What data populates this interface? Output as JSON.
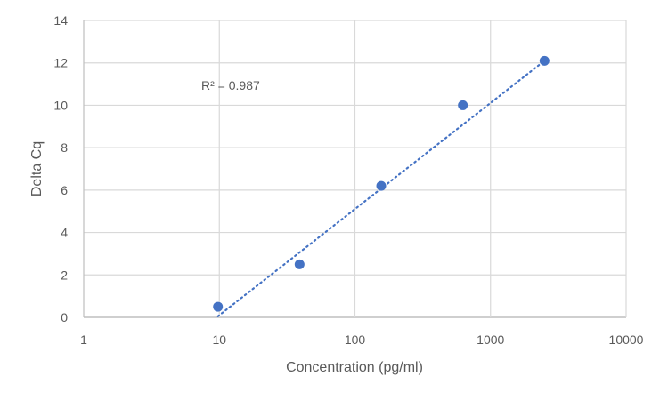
{
  "chart_data": {
    "type": "scatter",
    "title": "",
    "xlabel": "Concentration (pg/ml)",
    "ylabel": "Delta Cq",
    "xscale": "log",
    "xlim": [
      1,
      10000
    ],
    "ylim": [
      0,
      14
    ],
    "x_ticks": [
      "1",
      "10",
      "100",
      "1000",
      "10000"
    ],
    "y_ticks": [
      "0",
      "2",
      "4",
      "6",
      "8",
      "10",
      "12",
      "14"
    ],
    "grid": true,
    "legend": null,
    "series": [
      {
        "name": "Delta Cq",
        "color": "#4472C4",
        "x": [
          9.77,
          39.06,
          156.25,
          625,
          2500
        ],
        "y": [
          0.5,
          2.5,
          6.2,
          10.0,
          12.1
        ]
      }
    ],
    "trendline": {
      "type": "logarithmic",
      "style": "dotted",
      "color": "#4472C4",
      "x_range": [
        9.77,
        2500
      ],
      "y_range": [
        0.05,
        12.1
      ]
    },
    "annotations": [
      {
        "text": "R² = 0.987",
        "x": 30,
        "y": 11
      }
    ]
  },
  "labels": {
    "r_squared": "R² = 0.987",
    "xlabel": "Concentration (pg/ml)",
    "ylabel": "Delta Cq"
  },
  "colors": {
    "marker": "#4472C4",
    "grid": "#D9D9D9",
    "text": "#595959"
  }
}
